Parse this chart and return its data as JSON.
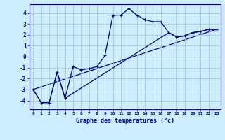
{
  "title": "",
  "xlabel": "Graphe des températures (°c)",
  "background_color": "#cceeff",
  "grid_color": "#aaccdd",
  "line_color": "#000088",
  "xlim": [
    -0.5,
    23.5
  ],
  "ylim": [
    -4.8,
    4.8
  ],
  "yticks": [
    -4,
    -3,
    -2,
    -1,
    0,
    1,
    2,
    3,
    4
  ],
  "xticks": [
    0,
    1,
    2,
    3,
    4,
    5,
    6,
    7,
    8,
    9,
    10,
    11,
    12,
    13,
    14,
    15,
    16,
    17,
    18,
    19,
    20,
    21,
    22,
    23
  ],
  "series1_x": [
    0,
    1,
    2,
    3,
    4,
    5,
    6,
    7,
    8,
    9,
    10,
    11,
    12,
    13,
    14,
    15,
    16,
    17,
    18,
    19,
    20,
    21,
    22,
    23
  ],
  "series1_y": [
    -3.0,
    -4.2,
    -4.2,
    -1.4,
    -3.8,
    -0.9,
    -1.2,
    -1.1,
    -0.9,
    0.1,
    3.8,
    3.8,
    4.4,
    3.8,
    3.4,
    3.2,
    3.2,
    2.2,
    1.8,
    1.9,
    2.2,
    2.3,
    2.5,
    2.5
  ],
  "series2_x": [
    0,
    1,
    2,
    3,
    4,
    17,
    18,
    19,
    20,
    21,
    22,
    23
  ],
  "series2_y": [
    -3.0,
    -4.2,
    -4.2,
    -1.4,
    -3.8,
    2.2,
    1.8,
    1.9,
    2.2,
    2.3,
    2.5,
    2.5
  ],
  "series3_x": [
    0,
    23
  ],
  "series3_y": [
    -3.0,
    2.5
  ],
  "marker": "+"
}
